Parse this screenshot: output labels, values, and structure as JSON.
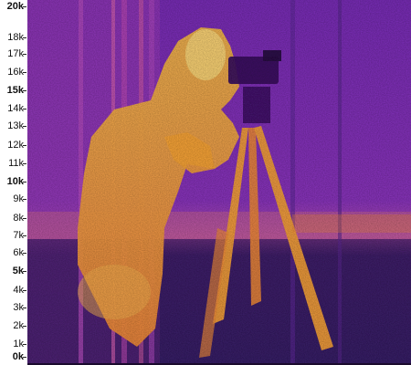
{
  "frequency_axis": {
    "ticks": [
      {
        "label": "20k",
        "major": true
      },
      {
        "label": "18k",
        "major": false
      },
      {
        "label": "17k",
        "major": false
      },
      {
        "label": "16k",
        "major": false
      },
      {
        "label": "15k",
        "major": true
      },
      {
        "label": "14k",
        "major": false
      },
      {
        "label": "13k",
        "major": false
      },
      {
        "label": "12k",
        "major": false
      },
      {
        "label": "11k",
        "major": false
      },
      {
        "label": "10k",
        "major": true
      },
      {
        "label": "9k",
        "major": false
      },
      {
        "label": "8k",
        "major": false
      },
      {
        "label": "7k",
        "major": false
      },
      {
        "label": "6k",
        "major": false
      },
      {
        "label": "5k",
        "major": true
      },
      {
        "label": "4k",
        "major": false
      },
      {
        "label": "3k",
        "major": false
      },
      {
        "label": "2k",
        "major": false
      },
      {
        "label": "1k",
        "major": false
      },
      {
        "label": "0k",
        "major": true
      }
    ]
  },
  "spectrogram": {
    "colormap": [
      "#1a0a3a",
      "#3d1b7a",
      "#7a2eb8",
      "#b03fc7",
      "#e0509a",
      "#f27a3c",
      "#f9a536",
      "#fcd77a",
      "#fff4c8"
    ],
    "background": "#6b2bb0"
  }
}
